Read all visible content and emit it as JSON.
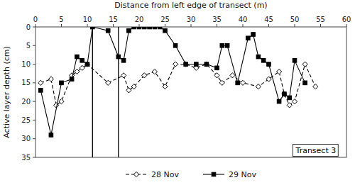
{
  "chart_data": {
    "type": "line",
    "xlabel": "Distance from left edge of transect (m)",
    "ylabel": "Active layer depth (cm)",
    "xlim": [
      0,
      60
    ],
    "ylim": [
      35,
      0
    ],
    "xticks": [
      0,
      5,
      10,
      15,
      20,
      25,
      30,
      35,
      40,
      45,
      50,
      55,
      60
    ],
    "yticks": [
      0,
      5,
      10,
      15,
      20,
      25,
      30,
      35
    ],
    "vlines": [
      11,
      16
    ],
    "annotation": "Transect 3",
    "grid": false,
    "legend": "bottom",
    "series": [
      {
        "name": "28 Nov",
        "color": "black",
        "marker": "open-diamond",
        "line_style": "dashed",
        "x": [
          1,
          3,
          4,
          5,
          7,
          8,
          9,
          10,
          14,
          17,
          18,
          19,
          21,
          23,
          25,
          27,
          29,
          31,
          33,
          35,
          36,
          38,
          40,
          43,
          45,
          47,
          48,
          49,
          50,
          52,
          54
        ],
        "values": [
          15,
          14,
          21,
          20,
          13,
          12,
          11,
          10,
          15,
          13,
          17,
          16,
          13,
          12,
          16,
          10,
          10,
          11,
          10,
          13,
          15,
          13,
          15,
          16,
          14,
          12,
          18,
          21,
          20,
          10,
          16
        ]
      },
      {
        "name": "29 Nov",
        "color": "black",
        "marker": "square",
        "line_style": "solid",
        "x": [
          1,
          3,
          5,
          7,
          8,
          9,
          10,
          11,
          14,
          16,
          17,
          18,
          19,
          20,
          21,
          22,
          23,
          24,
          25,
          27,
          29,
          31,
          33,
          35,
          36,
          37,
          39,
          41,
          42,
          43,
          44,
          45,
          47,
          48,
          49,
          50,
          52
        ],
        "values": [
          17,
          29,
          15,
          14,
          8,
          9,
          10,
          0,
          1,
          8,
          9,
          1,
          0,
          0,
          0,
          0,
          0,
          0,
          1,
          5,
          10,
          10,
          10,
          11,
          5,
          5,
          15,
          3,
          2,
          8,
          9,
          10,
          20,
          18,
          19,
          9,
          15
        ]
      }
    ]
  }
}
